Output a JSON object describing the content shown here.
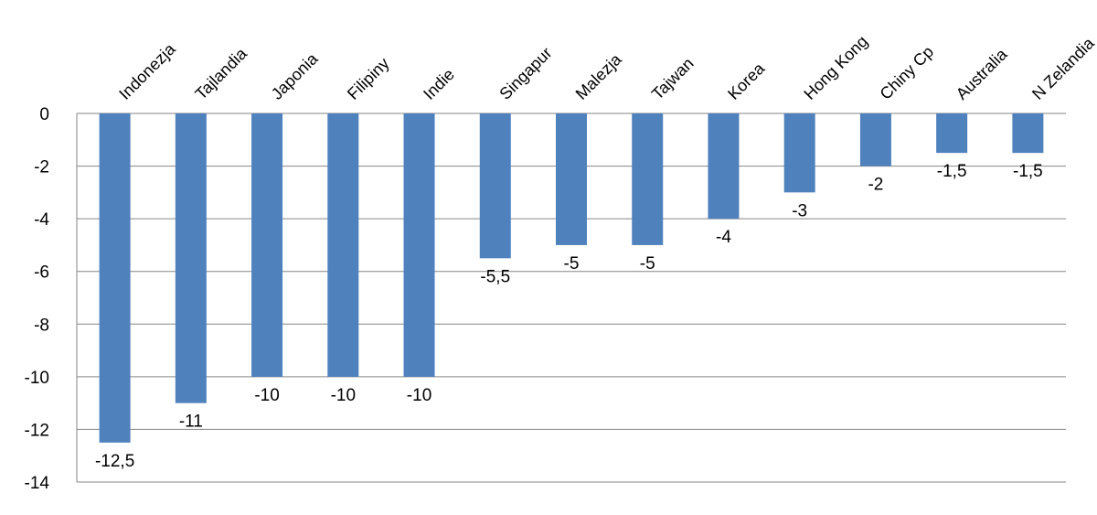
{
  "chart_data": {
    "type": "bar",
    "categories": [
      "Indonezja",
      "Tajlandia",
      "Japonia",
      "Filipiny",
      "Indie",
      "Singapur",
      "Malezja",
      "Tajwan",
      "Korea",
      "Hong Kong",
      "Chiny Cp",
      "Australia",
      "N Zelandia"
    ],
    "values": [
      -12.5,
      -11,
      -10,
      -10,
      -10,
      -5.5,
      -5,
      -5,
      -4,
      -3,
      -2,
      -1.5,
      -1.5
    ],
    "value_labels": [
      "-12,5",
      "-11",
      "-10",
      "-10",
      "-10",
      "-5,5",
      "-5",
      "-5",
      "-4",
      "-3",
      "-2",
      "-1,5",
      "-1,5"
    ],
    "y_ticks": [
      0,
      -2,
      -4,
      -6,
      -8,
      -10,
      -12,
      -14
    ],
    "y_tick_labels": [
      "0",
      "-2",
      "-4",
      "-6",
      "-8",
      "-10",
      "-12",
      "-14"
    ],
    "ylim": [
      -14,
      0
    ],
    "grid": true,
    "legend": false,
    "bar_color": "#4F81BD",
    "grid_color": "#868686",
    "title": "",
    "xlabel": "",
    "ylabel": ""
  }
}
